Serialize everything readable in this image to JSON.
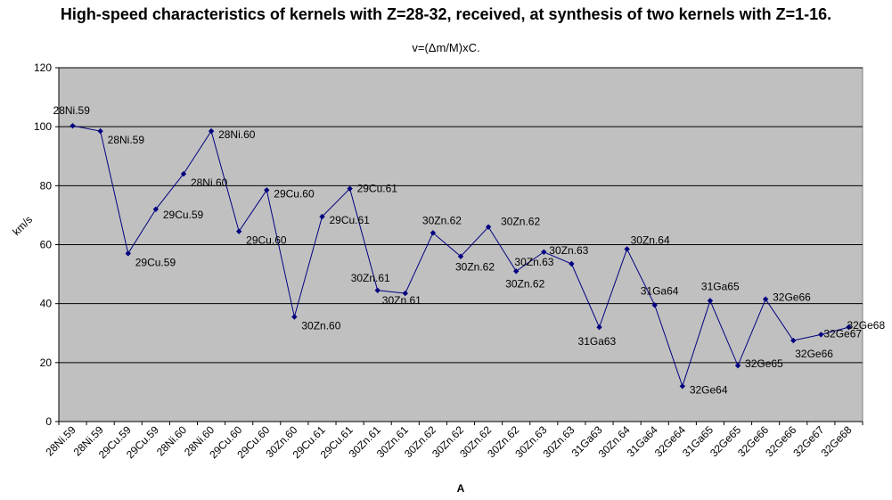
{
  "chart_data": {
    "type": "line",
    "title": "High-speed characteristics of kernels with Z=28-32, received, at synthesis of two kernels with Z=1-16.",
    "subtitle": "v=(Δm/M)xC.",
    "xlabel": "A",
    "ylabel": "km/s",
    "ylim": [
      0,
      120
    ],
    "yticks": [
      0,
      20,
      40,
      60,
      80,
      100,
      120
    ],
    "grid": true,
    "categories": [
      "28Ni.59",
      "28Ni.59",
      "29Cu.59",
      "29Cu.59",
      "28Ni.60",
      "28Ni.60",
      "29Cu.60",
      "29Cu.60",
      "30Zn.60",
      "29Cu.61",
      "29Cu.61",
      "30Zn.61",
      "30Zn.61",
      "30Zn.62",
      "30Zn.62",
      "30Zn.62",
      "30Zn.62",
      "30Zn.63",
      "30Zn.63",
      "31Ga63",
      "30Zn.64",
      "31Ga64",
      "32Ge64",
      "31Ga65",
      "32Ge65",
      "32Ge66",
      "32Ge66",
      "32Ge67",
      "32Ge68"
    ],
    "values": [
      100.3,
      98.5,
      57,
      72,
      84,
      98.5,
      64.5,
      78.5,
      35.5,
      69.5,
      79,
      44.5,
      43.5,
      64,
      56,
      66,
      51,
      57.5,
      53.5,
      32,
      58.5,
      39.5,
      12,
      41,
      19,
      41.5,
      27.5,
      29.5,
      32
    ],
    "data_labels": [
      "28Ni.59",
      "28Ni.59",
      "29Cu.59",
      "29Cu.59",
      "28Ni.60",
      "28Ni.60",
      "29Cu.60",
      "29Cu.60",
      "30Zn.60",
      "29Cu.61",
      "29Cu.61",
      "30Zn.61",
      "30Zn.61",
      "30Zn.62",
      "30Zn.62",
      "30Zn.62",
      "30Zn.62",
      "30Zn.63",
      "30Zn.63",
      "31Ga63",
      "30Zn.64",
      "31Ga64",
      "32Ge64",
      "31Ga65",
      "32Ge65",
      "32Ge66",
      "32Ge66",
      "32Ge67",
      "32Ge68"
    ],
    "series_color": "#000080",
    "plot_background": "#c0c0c0"
  }
}
